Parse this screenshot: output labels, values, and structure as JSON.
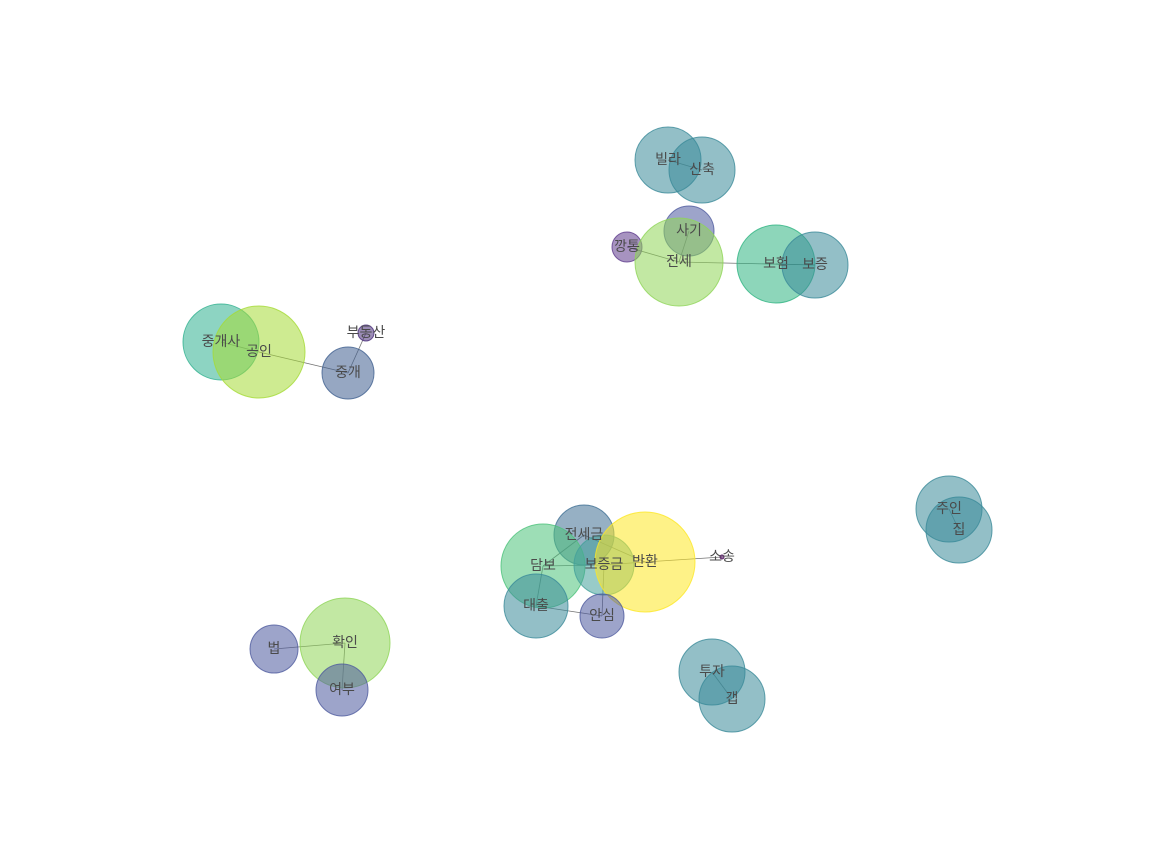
{
  "graph": {
    "nodes": [
      {
        "id": "빌라",
        "label": "빌라",
        "color": "#3a8a99",
        "weight": 0.55
      },
      {
        "id": "신축",
        "label": "신축",
        "color": "#3a8a99",
        "weight": 0.55
      },
      {
        "id": "사기",
        "label": "사기",
        "color": "#4d5a9e",
        "weight": 0.35
      },
      {
        "id": "깡통",
        "label": "깡통",
        "color": "#5e3b8c",
        "weight": 0.15
      },
      {
        "id": "전세",
        "label": "전세",
        "color": "#8fd557",
        "weight": 0.8
      },
      {
        "id": "보험",
        "label": "보험",
        "color": "#2fb482",
        "weight": 0.65
      },
      {
        "id": "보증",
        "label": "보증",
        "color": "#3a8a99",
        "weight": 0.55
      },
      {
        "id": "중개사",
        "label": "중개사",
        "color": "#2fb08f",
        "weight": 0.65
      },
      {
        "id": "공인",
        "label": "공인",
        "color": "#a5db36",
        "weight": 0.85
      },
      {
        "id": "부동산",
        "label": "부동산",
        "color": "#482d7a",
        "weight": 0.05
      },
      {
        "id": "중개",
        "label": "중개",
        "color": "#3f5f8f",
        "weight": 0.4
      },
      {
        "id": "주인",
        "label": "주인",
        "color": "#3a8a99",
        "weight": 0.55
      },
      {
        "id": "집",
        "label": "집",
        "color": "#3a8a99",
        "weight": 0.55
      },
      {
        "id": "전세금",
        "label": "전세금",
        "color": "#3f6f94",
        "weight": 0.45
      },
      {
        "id": "담보",
        "label": "담보",
        "color": "#4cc27a",
        "weight": 0.75
      },
      {
        "id": "보증금",
        "label": "보증금",
        "color": "#44a09a",
        "weight": 0.45
      },
      {
        "id": "반환",
        "label": "반환",
        "color": "#fde725",
        "weight": 1.0
      },
      {
        "id": "소송",
        "label": "소송",
        "color": "#440154",
        "weight": 0.0
      },
      {
        "id": "대출",
        "label": "대출",
        "color": "#3a8a99",
        "weight": 0.55
      },
      {
        "id": "안심",
        "label": "안심",
        "color": "#4d5a9e",
        "weight": 0.35
      },
      {
        "id": "법",
        "label": "법",
        "color": "#4d5a9e",
        "weight": 0.35
      },
      {
        "id": "확인",
        "label": "확인",
        "color": "#8fd557",
        "weight": 0.8
      },
      {
        "id": "여부",
        "label": "여부",
        "color": "#4d5a9e",
        "weight": 0.4
      },
      {
        "id": "투자",
        "label": "투자",
        "color": "#3a8a99",
        "weight": 0.55
      },
      {
        "id": "갭",
        "label": "갭",
        "color": "#3a8a99",
        "weight": 0.55
      }
    ],
    "edges": [
      [
        "빌라",
        "신축"
      ],
      [
        "사기",
        "전세"
      ],
      [
        "깡통",
        "전세"
      ],
      [
        "전세",
        "보증"
      ],
      [
        "보험",
        "보증"
      ],
      [
        "중개사",
        "공인"
      ],
      [
        "공인",
        "중개"
      ],
      [
        "부동산",
        "중개"
      ],
      [
        "주인",
        "집"
      ],
      [
        "전세금",
        "담보"
      ],
      [
        "전세금",
        "반환"
      ],
      [
        "담보",
        "보증금"
      ],
      [
        "담보",
        "대출"
      ],
      [
        "보증금",
        "반환"
      ],
      [
        "보증금",
        "안심"
      ],
      [
        "반환",
        "소송"
      ],
      [
        "대출",
        "안심"
      ],
      [
        "법",
        "확인"
      ],
      [
        "확인",
        "여부"
      ],
      [
        "투자",
        "갭"
      ]
    ]
  }
}
